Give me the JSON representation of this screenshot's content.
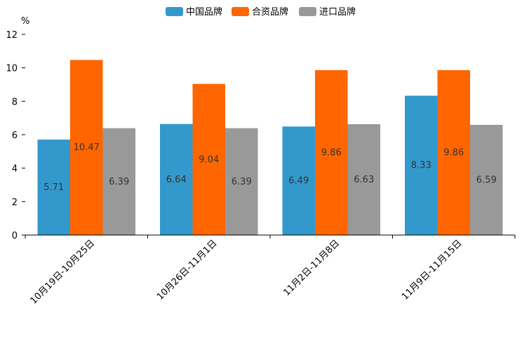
{
  "chart_data": {
    "type": "bar",
    "title": "",
    "xlabel": "",
    "ylabel": "%",
    "ylim": [
      0,
      12
    ],
    "yticks": [
      0,
      2,
      4,
      6,
      8,
      10,
      12
    ],
    "grid": false,
    "legend_position": "top-center",
    "categories": [
      "10月19日-10月25日",
      "10月26日-11月1日",
      "11月2日-11月8日",
      "11月9日-11月15日"
    ],
    "series": [
      {
        "name": "中国品牌",
        "color": "#3399cc",
        "values": [
          5.71,
          6.64,
          6.49,
          8.33
        ],
        "labels": [
          "5.71",
          "6.64",
          "6.49",
          "8.33"
        ]
      },
      {
        "name": "合资品牌",
        "color": "#ff6600",
        "values": [
          10.47,
          9.04,
          9.86,
          9.86
        ],
        "labels": [
          "10.47",
          "9.04",
          "9.86",
          "9.86"
        ]
      },
      {
        "name": "进口品牌",
        "color": "#999999",
        "values": [
          6.39,
          6.39,
          6.63,
          6.59
        ],
        "labels": [
          "6.39",
          "6.39",
          "6.63",
          "6.59"
        ]
      }
    ]
  }
}
